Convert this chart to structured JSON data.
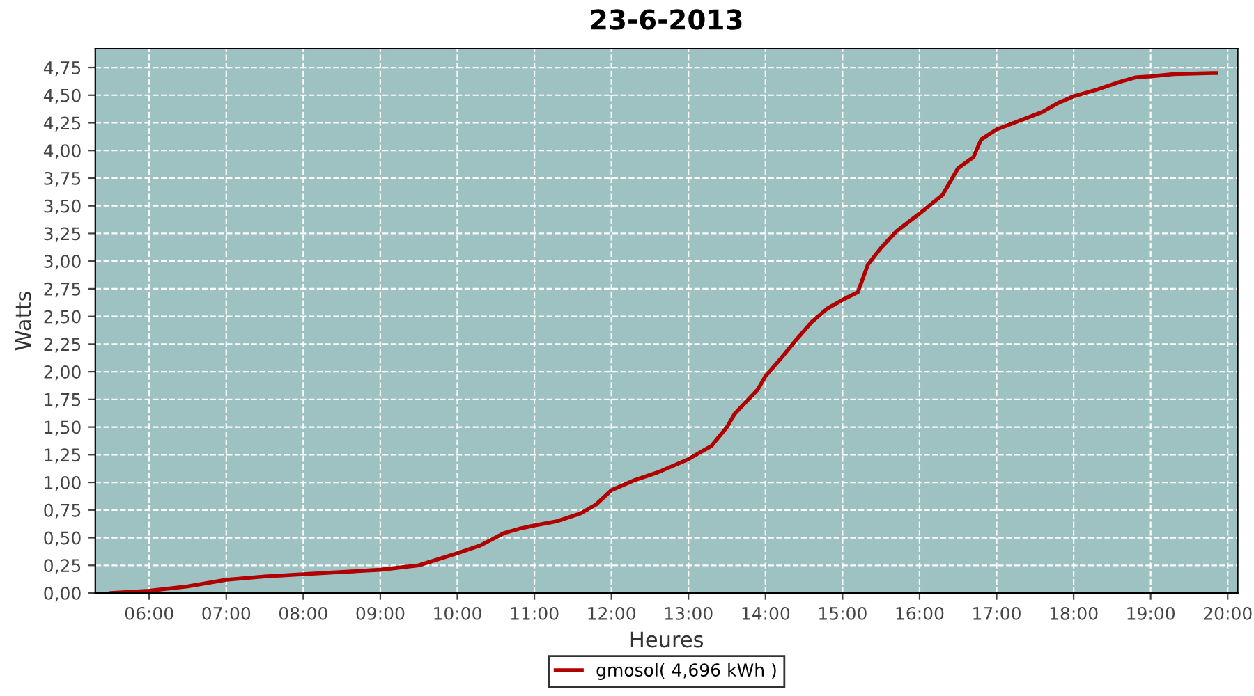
{
  "chart_data": {
    "type": "line",
    "title": "23-6-2013",
    "xlabel": "Heures",
    "ylabel": "Watts",
    "x": [
      5.5,
      6.0,
      6.5,
      7.0,
      7.5,
      8.0,
      8.5,
      9.0,
      9.5,
      10.0,
      10.3,
      10.6,
      10.8,
      11.0,
      11.3,
      11.6,
      11.8,
      12.0,
      12.3,
      12.6,
      13.0,
      13.3,
      13.5,
      13.6,
      13.9,
      14.0,
      14.2,
      14.4,
      14.6,
      14.8,
      15.0,
      15.2,
      15.33,
      15.5,
      15.7,
      16.0,
      16.3,
      16.4,
      16.5,
      16.7,
      16.8,
      17.0,
      17.3,
      17.6,
      17.8,
      18.0,
      18.3,
      18.6,
      18.8,
      19.0,
      19.3,
      19.8,
      19.85
    ],
    "series": [
      {
        "name": "gmosol( 4,696 kWh )",
        "color": "#b00000",
        "values": [
          0.0,
          0.02,
          0.06,
          0.12,
          0.15,
          0.17,
          0.19,
          0.21,
          0.25,
          0.36,
          0.43,
          0.54,
          0.58,
          0.61,
          0.65,
          0.72,
          0.8,
          0.93,
          1.02,
          1.09,
          1.21,
          1.33,
          1.5,
          1.62,
          1.84,
          1.96,
          2.12,
          2.29,
          2.45,
          2.57,
          2.65,
          2.72,
          2.97,
          3.12,
          3.27,
          3.43,
          3.6,
          3.72,
          3.84,
          3.94,
          4.1,
          4.19,
          4.27,
          4.35,
          4.43,
          4.49,
          4.55,
          4.62,
          4.66,
          4.67,
          4.69,
          4.7,
          4.7
        ]
      }
    ],
    "xlim": [
      5.3,
      20.13
    ],
    "ylim": [
      0,
      4.92
    ],
    "xticks": [
      {
        "value": 6,
        "label": "06:00"
      },
      {
        "value": 7,
        "label": "07:00"
      },
      {
        "value": 8,
        "label": "08:00"
      },
      {
        "value": 9,
        "label": "09:00"
      },
      {
        "value": 10,
        "label": "10:00"
      },
      {
        "value": 11,
        "label": "11:00"
      },
      {
        "value": 12,
        "label": "12:00"
      },
      {
        "value": 13,
        "label": "13:00"
      },
      {
        "value": 14,
        "label": "14:00"
      },
      {
        "value": 15,
        "label": "15:00"
      },
      {
        "value": 16,
        "label": "16:00"
      },
      {
        "value": 17,
        "label": "17:00"
      },
      {
        "value": 18,
        "label": "18:00"
      },
      {
        "value": 19,
        "label": "19:00"
      },
      {
        "value": 20,
        "label": "20:00"
      }
    ],
    "yticks": [
      {
        "value": 0,
        "label": "0,00"
      },
      {
        "value": 0.25,
        "label": "0,25"
      },
      {
        "value": 0.5,
        "label": "0,50"
      },
      {
        "value": 0.75,
        "label": "0,75"
      },
      {
        "value": 1,
        "label": "1,00"
      },
      {
        "value": 1.25,
        "label": "1,25"
      },
      {
        "value": 1.5,
        "label": "1,50"
      },
      {
        "value": 1.75,
        "label": "1,75"
      },
      {
        "value": 2,
        "label": "2,00"
      },
      {
        "value": 2.25,
        "label": "2,25"
      },
      {
        "value": 2.5,
        "label": "2,50"
      },
      {
        "value": 2.75,
        "label": "2,75"
      },
      {
        "value": 3,
        "label": "3,00"
      },
      {
        "value": 3.25,
        "label": "3,25"
      },
      {
        "value": 3.5,
        "label": "3,50"
      },
      {
        "value": 3.75,
        "label": "3,75"
      },
      {
        "value": 4,
        "label": "4,00"
      },
      {
        "value": 4.25,
        "label": "4,25"
      },
      {
        "value": 4.5,
        "label": "4,50"
      },
      {
        "value": 4.75,
        "label": "4,75"
      }
    ],
    "grid": true,
    "legend": "bottom",
    "line_style": "solid"
  }
}
